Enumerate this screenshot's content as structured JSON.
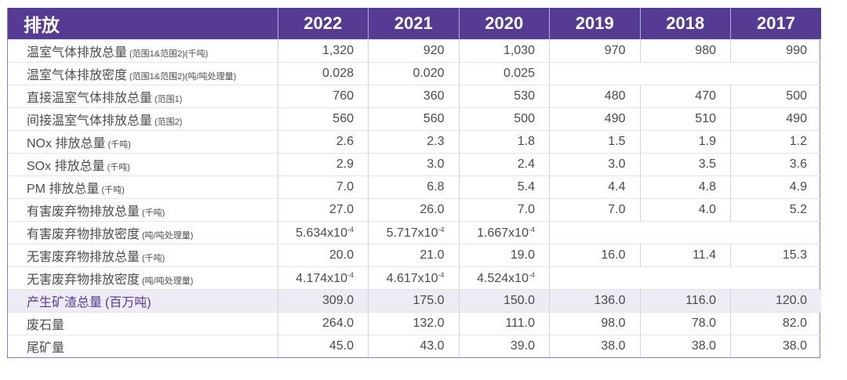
{
  "header": {
    "title": "排放",
    "years": [
      "2022",
      "2021",
      "2020",
      "2019",
      "2018",
      "2017"
    ]
  },
  "rows": [
    {
      "label": "温室气体排放总量",
      "unit": "(范围1&范围2)(千吨)",
      "values": [
        "1,320",
        "920",
        "1,030",
        "970",
        "980",
        "990"
      ]
    },
    {
      "label": "温室气体排放密度",
      "unit": "(范围1&范围2)(吨/吨处理量)",
      "values": [
        "0.028",
        "0.020",
        "0.025",
        "",
        "",
        ""
      ]
    },
    {
      "label": "直接温室气体排放总量",
      "unit": "(范围1)",
      "values": [
        "760",
        "360",
        "530",
        "480",
        "470",
        "500"
      ]
    },
    {
      "label": "间接温室气体排放总量",
      "unit": "(范围2)",
      "values": [
        "560",
        "560",
        "500",
        "490",
        "510",
        "490"
      ]
    },
    {
      "label": "NOx 排放总量",
      "unit": "(千吨)",
      "values": [
        "2.6",
        "2.3",
        "1.8",
        "1.5",
        "1.9",
        "1.2"
      ]
    },
    {
      "label": "SOx 排放总量",
      "unit": "(千吨)",
      "values": [
        "2.9",
        "3.0",
        "2.4",
        "3.0",
        "3.5",
        "3.6"
      ]
    },
    {
      "label": "PM 排放总量",
      "unit": "(千吨)",
      "values": [
        "7.0",
        "6.8",
        "5.4",
        "4.4",
        "4.8",
        "4.9"
      ]
    },
    {
      "label": "有害废弃物排放总量",
      "unit": "(千吨)",
      "values": [
        "27.0",
        "26.0",
        "7.0",
        "7.0",
        "4.0",
        "5.2"
      ]
    },
    {
      "label": "有害废弃物排放密度",
      "unit": "(吨/吨处理量)",
      "values": [
        "5.634x10⁻⁴",
        "5.717x10⁻⁴",
        "1.667x10⁻⁴",
        "",
        "",
        ""
      ]
    },
    {
      "label": "无害废弃物排放总量",
      "unit": "(千吨)",
      "values": [
        "20.0",
        "21.0",
        "19.0",
        "16.0",
        "11.4",
        "15.3"
      ]
    },
    {
      "label": "无害废弃物排放密度",
      "unit": "(吨/吨处理量)",
      "values": [
        "4.174x10⁻⁴",
        "4.617x10⁻⁴",
        "4.524x10⁻⁴",
        "",
        "",
        ""
      ]
    },
    {
      "label": "产生矿渣总量",
      "unit": "(百万吨)",
      "values": [
        "309.0",
        "175.0",
        "150.0",
        "136.0",
        "116.0",
        "120.0"
      ],
      "highlight": true
    },
    {
      "label": "废石量",
      "unit": "",
      "values": [
        "264.0",
        "132.0",
        "111.0",
        "98.0",
        "78.0",
        "82.0"
      ]
    },
    {
      "label": "尾矿量",
      "unit": "",
      "values": [
        "45.0",
        "43.0",
        "39.0",
        "38.0",
        "38.0",
        "38.0"
      ]
    }
  ],
  "colors": {
    "header_bg": "#553b94",
    "header_text": "#ffffff",
    "highlight_bg": "#eeebf4",
    "highlight_text": "#553b94",
    "border_accent": "#8e7cc3"
  }
}
